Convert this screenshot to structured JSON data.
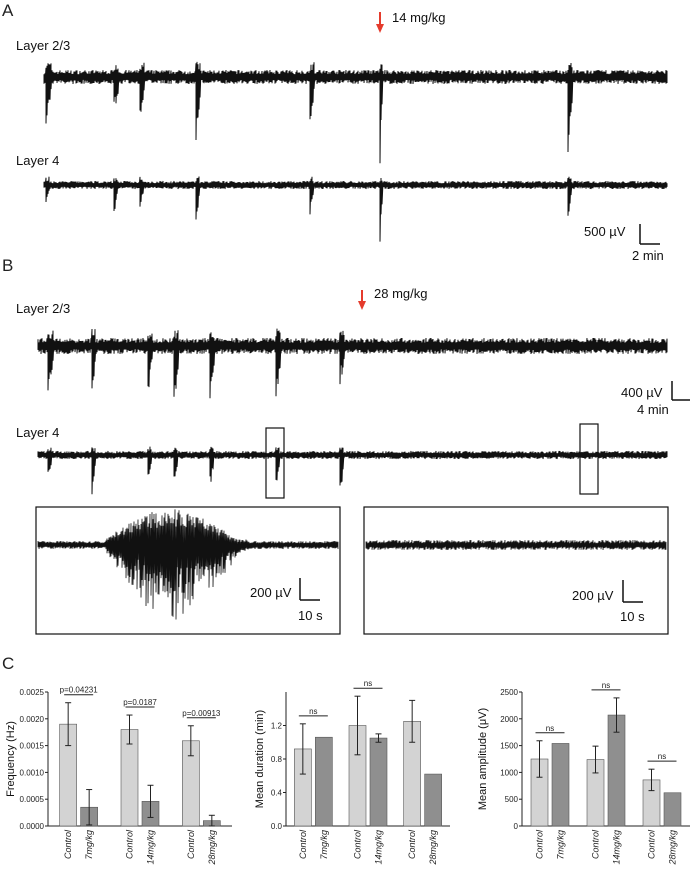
{
  "panels": {
    "a": "A",
    "b": "B",
    "c": "C"
  },
  "panel_a": {
    "layer1": "Layer 2/3",
    "layer2": "Layer 4",
    "dose": "14 mg/kg",
    "scale_v": "500 µV",
    "scale_t": "2 min"
  },
  "panel_b": {
    "layer1": "Layer 2/3",
    "layer2": "Layer 4",
    "dose": "28 mg/kg",
    "scale_v": "400 µV",
    "scale_t": "4 min",
    "inset_left": {
      "scale_v": "200 µV",
      "scale_t": "10 s"
    },
    "inset_right": {
      "scale_v": "200 µV",
      "scale_t": "10 s"
    }
  },
  "colors": {
    "arrow": "#e53b2c",
    "control_bar": "#d3d3d3",
    "drug_bar": "#8f8f8f",
    "trace": "#111111"
  },
  "chart_data": [
    {
      "type": "bar",
      "ylabel": "Frequency (Hz)",
      "ylim": [
        0,
        0.0025
      ],
      "yticks": [
        "0.0000",
        "0.0005",
        "0.0010",
        "0.0015",
        "0.0020",
        "0.0025"
      ],
      "categories": [
        "Control",
        "7mg/kg",
        "Control",
        "14mg/kg",
        "Control",
        "28mg/kg"
      ],
      "values": [
        0.0019,
        0.00035,
        0.0018,
        0.00046,
        0.00159,
        0.0001
      ],
      "errors": [
        0.0004,
        0.00033,
        0.00027,
        0.0003,
        0.00028,
        0.0001
      ],
      "comparisons": [
        "p=0.04231",
        "p=0.0187",
        "p=0.00913"
      ]
    },
    {
      "type": "bar",
      "ylabel": "Mean duration (min)",
      "ylim": [
        0,
        1.6
      ],
      "yticks": [
        "0.0",
        "0.4",
        "0.8",
        "1.2"
      ],
      "categories": [
        "Control",
        "7mg/kg",
        "Control",
        "14mg/kg",
        "Control",
        "28mg/kg"
      ],
      "values": [
        0.92,
        1.06,
        1.2,
        1.05,
        1.25,
        0.62
      ],
      "errors": [
        0.3,
        0,
        0.35,
        0.05,
        0.25,
        0
      ],
      "comparisons": [
        "ns",
        "ns",
        ""
      ]
    },
    {
      "type": "bar",
      "ylabel": "Mean amplitude (μV)",
      "ylim": [
        0,
        2500
      ],
      "yticks": [
        "0",
        "500",
        "1000",
        "1500",
        "2000",
        "2500"
      ],
      "categories": [
        "Control",
        "7mg/kg",
        "Control",
        "14mg/kg",
        "Control",
        "28mg/kg"
      ],
      "values": [
        1250,
        1540,
        1240,
        2070,
        860,
        620
      ],
      "errors": [
        340,
        0,
        250,
        320,
        200,
        0
      ],
      "comparisons": [
        "ns",
        "ns",
        "ns"
      ]
    }
  ]
}
